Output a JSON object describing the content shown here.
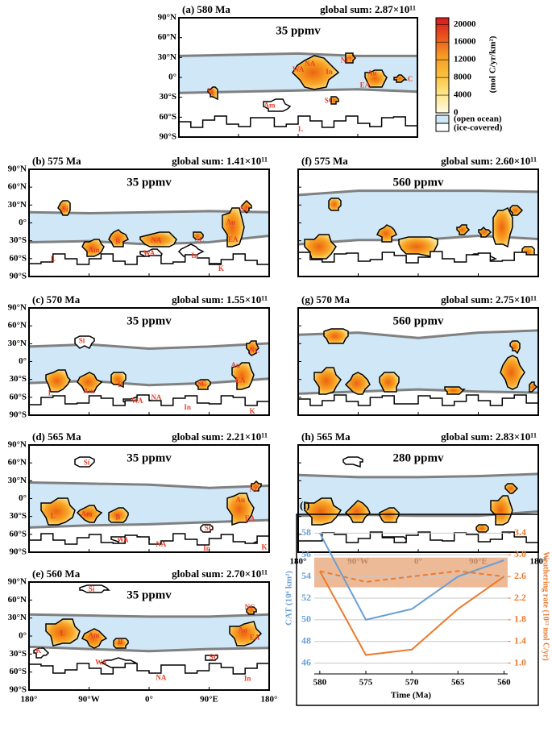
{
  "chart_data": [
    {
      "type": "map",
      "lat_ticks": [
        {
          "value": 90,
          "label": "90°N"
        },
        {
          "value": 60,
          "label": "60°N"
        },
        {
          "value": 30,
          "label": "30°N"
        },
        {
          "value": 0,
          "label": "0°"
        },
        {
          "value": -30,
          "label": "30°S"
        },
        {
          "value": -60,
          "label": "60°S"
        },
        {
          "value": -90,
          "label": "90°S"
        }
      ],
      "lon_ticks": [
        {
          "value": -180,
          "label": "180°"
        },
        {
          "value": -90,
          "label": "90°W"
        },
        {
          "value": 0,
          "label": "0°"
        },
        {
          "value": 90,
          "label": "90°E"
        },
        {
          "value": 180,
          "label": "180°"
        }
      ],
      "colorbar": {
        "title": "(mol C/yr/km²)",
        "lim": [
          0,
          21500
        ],
        "ticks": [
          0,
          4000,
          8000,
          12000,
          16000,
          20000
        ],
        "ocean_label": "(open ocean)",
        "ice_label": "(ice-covered)"
      },
      "panels": [
        {
          "label": "(a) 580 Ma",
          "global_sum": "global sum: 2.87×10¹¹",
          "co2": "35 ppmv",
          "regions": [
            "Si",
            "NA",
            "WA",
            "In",
            "NC",
            "Au",
            "EA",
            "C",
            "Am",
            "SC",
            "L"
          ]
        },
        {
          "label": "(b) 575 Ma",
          "global_sum": "global sum: 1.41×10¹¹",
          "co2": "35 ppmv",
          "regions": [
            "Si",
            "NC",
            "Au",
            "EA",
            "B",
            "NA",
            "Am",
            "WA",
            "In",
            "L",
            "K",
            "SC"
          ]
        },
        {
          "label": "(c) 570 Ma",
          "global_sum": "global sum: 1.55×10¹¹",
          "co2": "35 ppmv",
          "regions": [
            "Si",
            "NC",
            "Au",
            "EA",
            "SC",
            "L",
            "Am",
            "B",
            "WA",
            "NA",
            "In",
            "K"
          ]
        },
        {
          "label": "(d) 565 Ma",
          "global_sum": "global sum: 2.21×10¹¹",
          "co2": "35 ppmv",
          "regions": [
            "Si",
            "NC",
            "Au",
            "EA",
            "L",
            "Am",
            "B",
            "SC",
            "WA",
            "NA",
            "In",
            "K"
          ]
        },
        {
          "label": "(e) 560 Ma",
          "global_sum": "global sum: 2.70×10¹¹",
          "co2": "35 ppmv",
          "regions": [
            "Si",
            "NC",
            "Au",
            "EA",
            "L",
            "Am",
            "B",
            "K",
            "WA",
            "SC",
            "NA",
            "In"
          ]
        },
        {
          "label": "(f) 575 Ma",
          "global_sum": "global sum: 2.60×10¹¹",
          "co2": "560 ppmv"
        },
        {
          "label": "(g) 570 Ma",
          "global_sum": "global sum: 2.75×10¹¹",
          "co2": "560 ppmv"
        },
        {
          "label": "(h) 565 Ma",
          "global_sum": "global sum: 2.83×10¹¹",
          "co2": "280 ppmv"
        }
      ]
    },
    {
      "type": "line",
      "panel_label": "(i)",
      "xlabel": "Time (Ma)",
      "ylabel": "CAT (10⁶ km²)",
      "y2label": "Weathering rate (10¹³ mol C/yr)",
      "x": [
        580,
        575,
        570,
        565,
        560
      ],
      "xlim": [
        580.6,
        559.6
      ],
      "xticks": [
        580,
        575,
        570,
        565,
        560
      ],
      "ylim": [
        45,
        59
      ],
      "yticks": [
        46,
        48,
        50,
        52,
        54,
        56,
        58
      ],
      "y2lim": [
        0.8,
        3.6
      ],
      "y2ticks": [
        {
          "value": 1,
          "label": "1.0"
        },
        1.4,
        1.8,
        2.2,
        2.6,
        {
          "value": 3,
          "label": "3.0"
        },
        3.4
      ],
      "shaded_range": [
        2.4,
        2.95
      ],
      "shaded_color": "#e8a97e",
      "grid": true,
      "series": [
        {
          "color": "#6a9fd4",
          "values": [
            58,
            50,
            51,
            54,
            55.5
          ]
        },
        {
          "color": "#ec7a2c",
          "axis": "y2",
          "values": [
            2.7,
            1.15,
            1.25,
            2.0,
            2.6
          ]
        },
        {
          "color": "#ec7a2c",
          "axis": "y2",
          "dashed": true,
          "values": [
            2.7,
            2.5,
            2.6,
            2.7,
            2.6
          ]
        }
      ]
    }
  ]
}
